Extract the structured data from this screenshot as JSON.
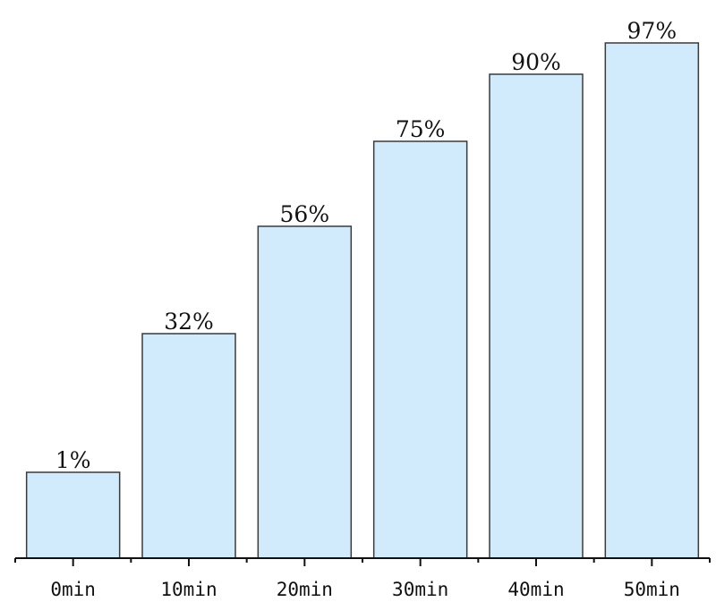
{
  "chart_data": {
    "type": "bar",
    "categories": [
      "0min",
      "10min",
      "20min",
      "30min",
      "40min",
      "50min"
    ],
    "values": [
      1,
      32,
      56,
      75,
      90,
      97
    ],
    "value_unit": "%",
    "data_labels": [
      "1%",
      "32%",
      "56%",
      "75%",
      "90%",
      "97%"
    ],
    "title": "",
    "xlabel": "",
    "ylabel": "",
    "ylim": [
      -23.2,
      100
    ],
    "grid": false,
    "legend": "none",
    "colors": {
      "bar_fill": "#d1ebfc",
      "bar_stroke": "#3a3a3a",
      "axis": "#111111"
    }
  }
}
